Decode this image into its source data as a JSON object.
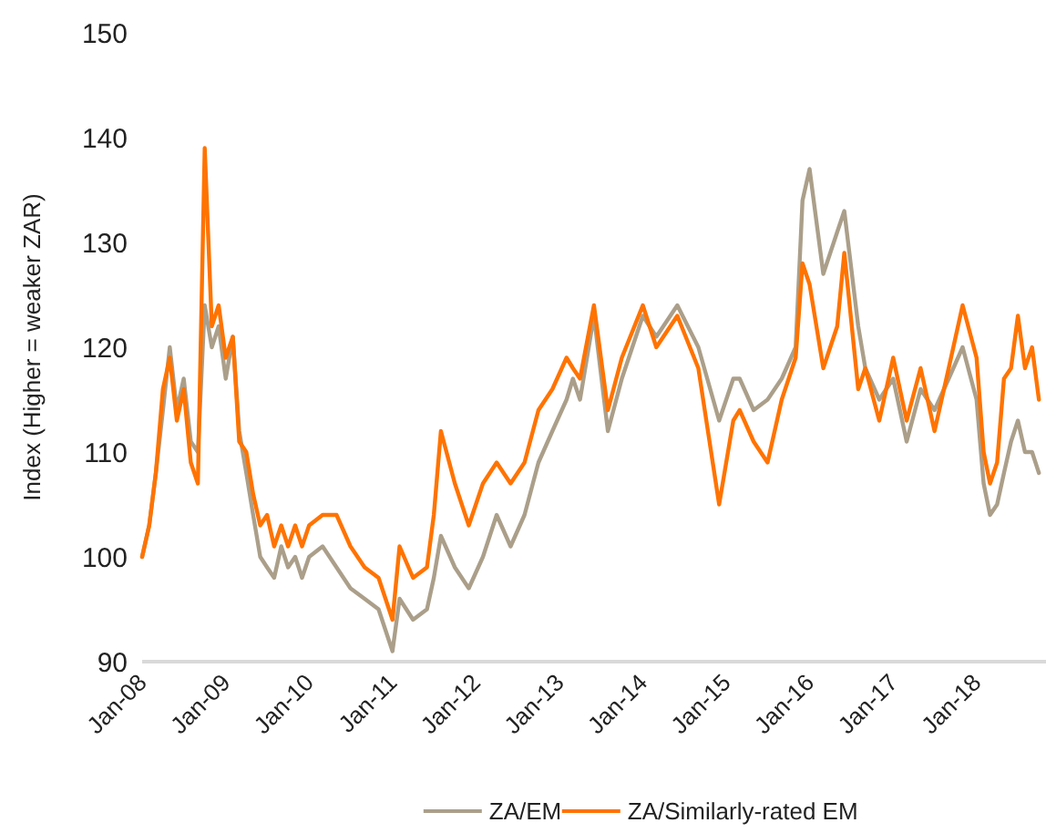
{
  "chart_data": {
    "type": "line",
    "ylabel": "Index (Higher = weaker ZAR)",
    "x": [
      "2008-01",
      "2008-02",
      "2008-03",
      "2008-04",
      "2008-05",
      "2008-06",
      "2008-07",
      "2008-08",
      "2008-09",
      "2008-10",
      "2008-11",
      "2008-12",
      "2009-01",
      "2009-02",
      "2009-03",
      "2009-04",
      "2009-05",
      "2009-06",
      "2009-07",
      "2009-08",
      "2009-09",
      "2009-10",
      "2009-11",
      "2009-12",
      "2010-01",
      "2010-03",
      "2010-05",
      "2010-07",
      "2010-09",
      "2010-11",
      "2011-01",
      "2011-02",
      "2011-04",
      "2011-06",
      "2011-07",
      "2011-08",
      "2011-10",
      "2011-12",
      "2012-02",
      "2012-04",
      "2012-06",
      "2012-08",
      "2012-10",
      "2012-12",
      "2013-02",
      "2013-03",
      "2013-04",
      "2013-06",
      "2013-08",
      "2013-10",
      "2014-01",
      "2014-03",
      "2014-06",
      "2014-09",
      "2014-12",
      "2015-02",
      "2015-03",
      "2015-05",
      "2015-07",
      "2015-09",
      "2015-11",
      "2015-12",
      "2016-01",
      "2016-03",
      "2016-05",
      "2016-06",
      "2016-08",
      "2016-09",
      "2016-11",
      "2017-01",
      "2017-03",
      "2017-05",
      "2017-07",
      "2017-09",
      "2017-11",
      "2018-01",
      "2018-02",
      "2018-03",
      "2018-04",
      "2018-05",
      "2018-06",
      "2018-07",
      "2018-08",
      "2018-09",
      "2018-10"
    ],
    "series": [
      {
        "name": "ZA/EM",
        "color": "#ab9f8a",
        "values": [
          100,
          103,
          108,
          114,
          120,
          114,
          117,
          111,
          110,
          124,
          120,
          122,
          117,
          121,
          112,
          108,
          104,
          100,
          99,
          98,
          101,
          99,
          100,
          98,
          100,
          101,
          99,
          97,
          96,
          95,
          91,
          96,
          94,
          95,
          98,
          102,
          99,
          97,
          100,
          104,
          101,
          104,
          109,
          112,
          115,
          117,
          115,
          123,
          112,
          117,
          123,
          121,
          124,
          120,
          113,
          117,
          117,
          114,
          115,
          117,
          120,
          134,
          137,
          127,
          131,
          133,
          122,
          118,
          115,
          117,
          111,
          116,
          114,
          117,
          120,
          115,
          107,
          104,
          105,
          108,
          111,
          113,
          110,
          110,
          108
        ]
      },
      {
        "name": "ZA/Similarly-rated EM",
        "color": "#ff7300",
        "values": [
          100,
          103,
          108,
          116,
          119,
          113,
          116,
          109,
          107,
          139,
          122,
          124,
          119,
          121,
          111,
          110,
          106,
          103,
          104,
          101,
          103,
          101,
          103,
          101,
          103,
          104,
          104,
          101,
          99,
          98,
          94,
          101,
          98,
          99,
          104,
          112,
          107,
          103,
          107,
          109,
          107,
          109,
          114,
          116,
          119,
          118,
          117,
          124,
          114,
          119,
          124,
          120,
          123,
          118,
          105,
          113,
          114,
          111,
          109,
          115,
          119,
          128,
          126,
          118,
          122,
          129,
          116,
          118,
          113,
          119,
          113,
          118,
          112,
          118,
          124,
          119,
          110,
          107,
          109,
          117,
          118,
          123,
          118,
          120,
          115
        ]
      }
    ],
    "xlim": [
      "2008-01",
      "2018-11"
    ],
    "xticks": [
      {
        "value": "2008-01",
        "label": "Jan-08"
      },
      {
        "value": "2009-01",
        "label": "Jan-09"
      },
      {
        "value": "2010-01",
        "label": "Jan-10"
      },
      {
        "value": "2011-01",
        "label": "Jan-11"
      },
      {
        "value": "2012-01",
        "label": "Jan-12"
      },
      {
        "value": "2013-01",
        "label": "Jan-13"
      },
      {
        "value": "2014-01",
        "label": "Jan-14"
      },
      {
        "value": "2015-01",
        "label": "Jan-15"
      },
      {
        "value": "2016-01",
        "label": "Jan-16"
      },
      {
        "value": "2017-01",
        "label": "Jan-17"
      },
      {
        "value": "2018-01",
        "label": "Jan-18"
      }
    ],
    "ylim": [
      90,
      150
    ],
    "yticks": [
      90,
      100,
      110,
      120,
      130,
      140,
      150
    ],
    "grid": false,
    "legend": "bottom",
    "marker": "none",
    "line_style": "solid"
  }
}
